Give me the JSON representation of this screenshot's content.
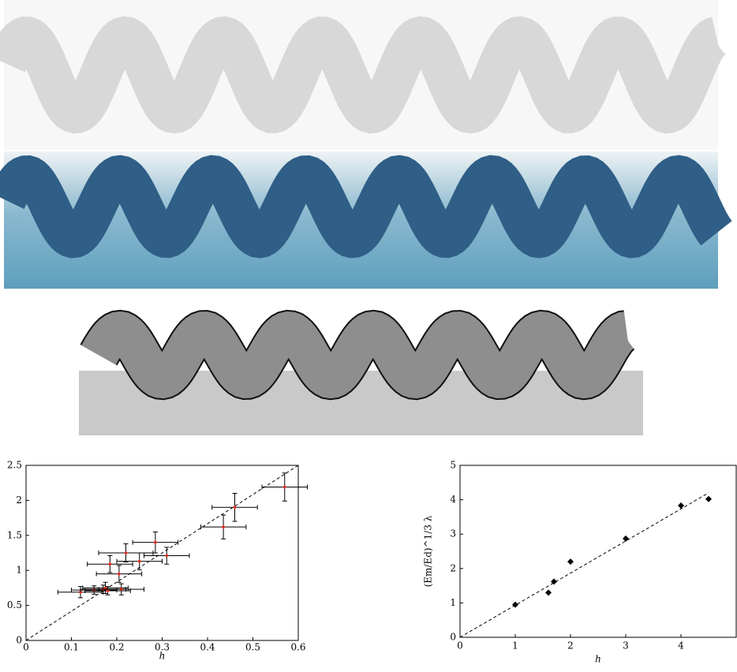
{
  "chart_data": [
    {
      "type": "scatter",
      "xlabel": "h",
      "xlim": [
        0,
        0.6
      ],
      "xticks": [
        0,
        0.1,
        0.2,
        0.3,
        0.4,
        0.5,
        0.6
      ],
      "ylim": [
        0,
        2.5
      ],
      "yticks": [
        0,
        0.5,
        1,
        1.5,
        2,
        2.5
      ],
      "series": [
        {
          "color": "#d62a1e",
          "x": [
            0.12,
            0.15,
            0.17,
            0.175,
            0.18,
            0.21,
            0.185,
            0.205,
            0.22,
            0.25,
            0.285,
            0.31,
            0.435,
            0.46,
            0.57
          ],
          "values": [
            0.69,
            0.72,
            0.73,
            0.75,
            0.71,
            0.73,
            1.09,
            0.95,
            1.25,
            1.13,
            1.4,
            1.21,
            1.62,
            1.9,
            2.19
          ],
          "xerr": [
            0.05,
            0.05,
            0.05,
            0.05,
            0.05,
            0.05,
            0.05,
            0.05,
            0.06,
            0.05,
            0.05,
            0.05,
            0.05,
            0.05,
            0.05
          ],
          "yerr": [
            0.08,
            0.06,
            0.06,
            0.08,
            0.06,
            0.08,
            0.12,
            0.12,
            0.13,
            0.12,
            0.15,
            0.12,
            0.17,
            0.2,
            0.2
          ]
        }
      ],
      "fit": {
        "x": [
          0,
          0.6
        ],
        "values": [
          0,
          2.5
        ]
      }
    },
    {
      "type": "scatter",
      "xlabel": "h",
      "ylabel": "(Em/Ed)^1/3 λ",
      "xlim": [
        0,
        5
      ],
      "xticks": [
        0,
        1,
        2,
        3,
        4
      ],
      "ylim": [
        0,
        5
      ],
      "yticks": [
        0,
        1,
        2,
        3,
        4,
        5
      ],
      "series": [
        {
          "color": "#000000",
          "x": [
            1,
            1.6,
            1.7,
            2,
            3,
            4,
            4.5
          ],
          "values": [
            0.95,
            1.3,
            1.62,
            2.2,
            2.87,
            3.83,
            4.02
          ]
        }
      ],
      "fit": {
        "x": [
          0,
          4.5
        ],
        "values": [
          0,
          4.2
        ]
      }
    }
  ]
}
